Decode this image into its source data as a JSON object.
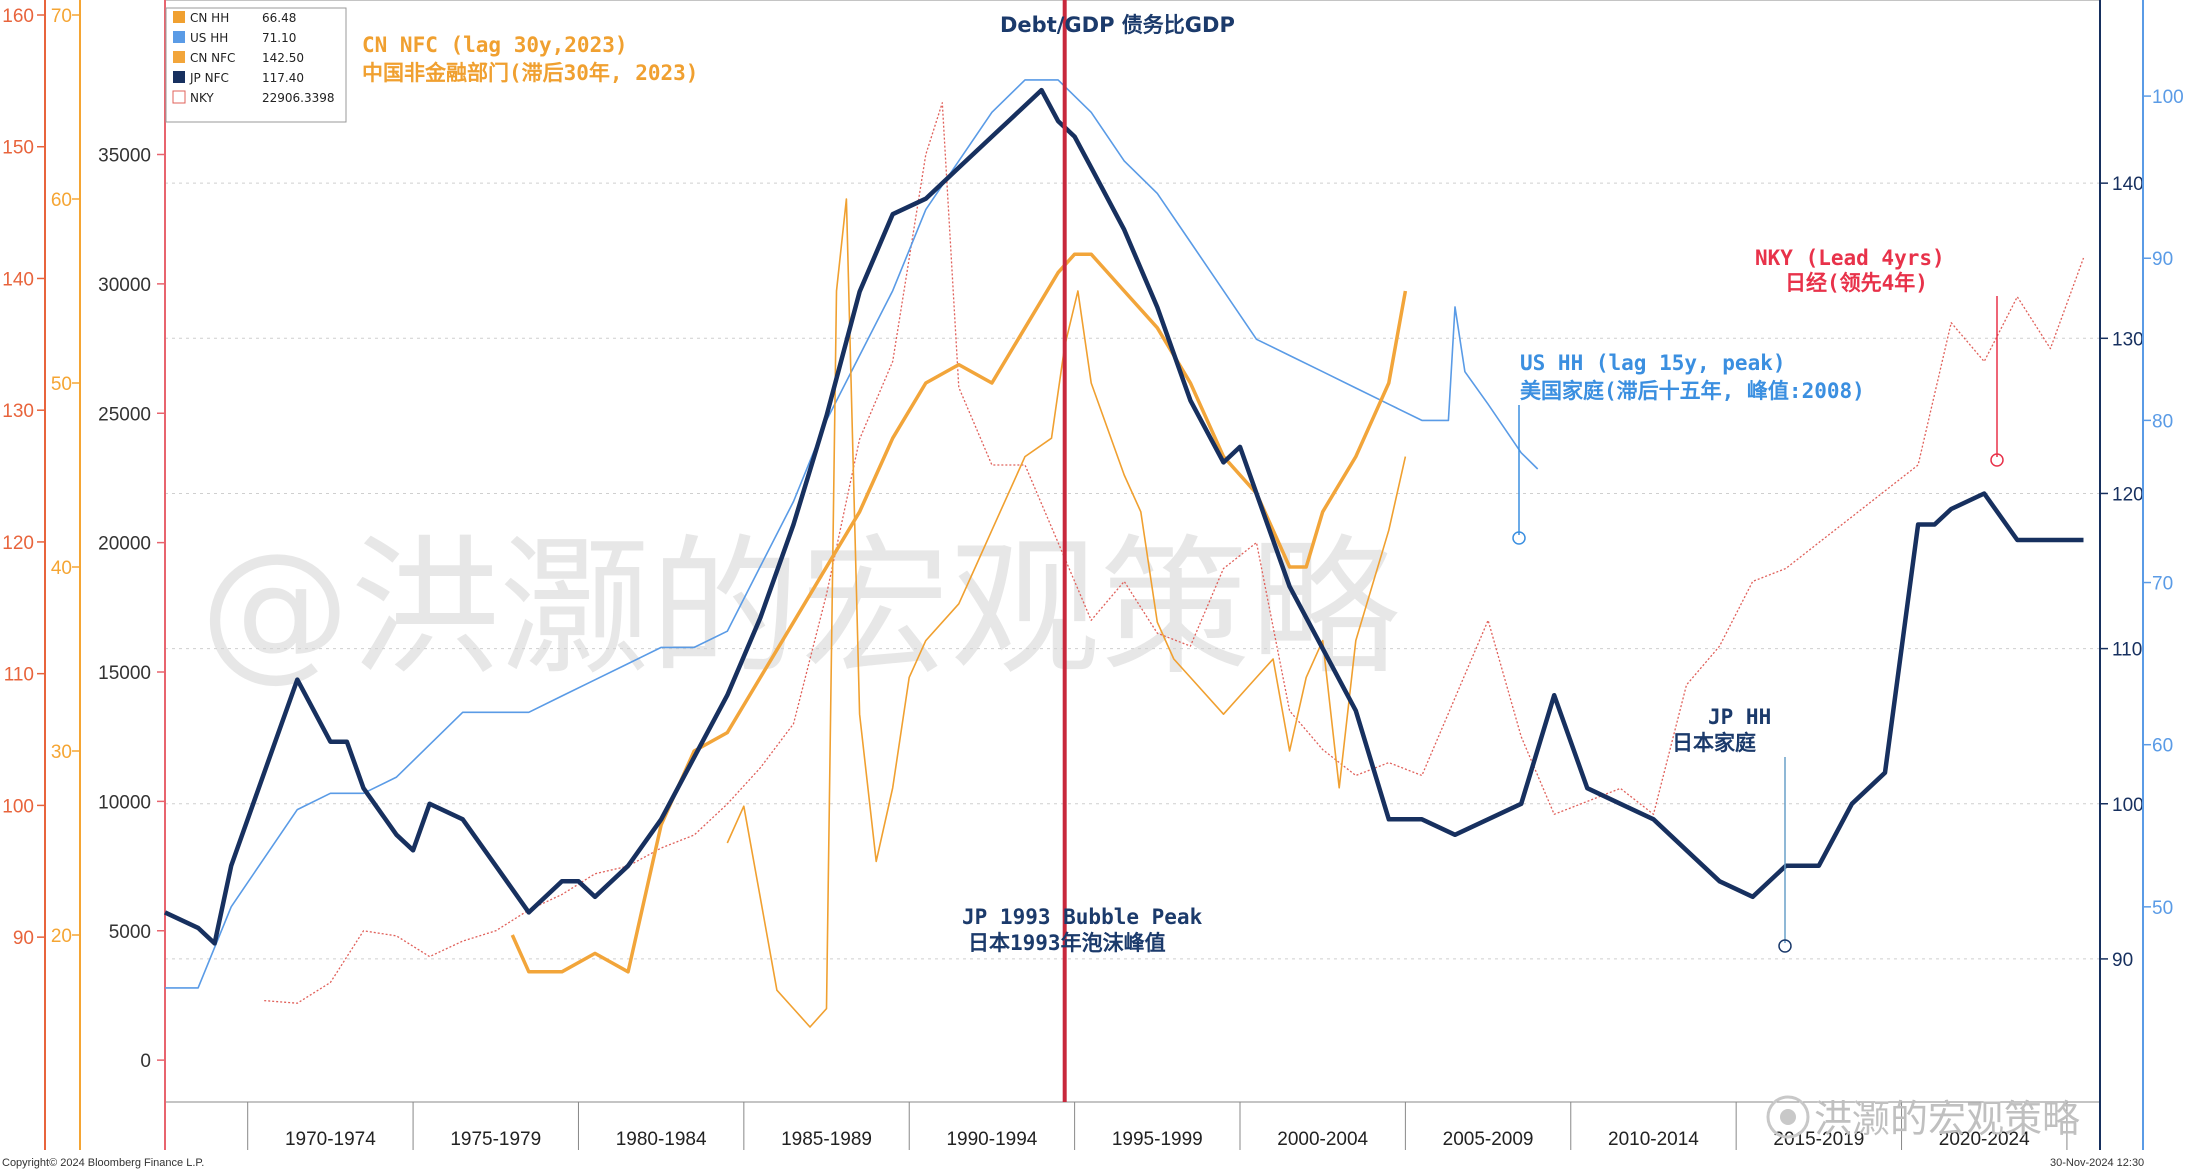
{
  "chart_data": {
    "type": "line",
    "title": "Debt/GDP 债务比GDP",
    "colors": {
      "cn_hh": "#f0a030",
      "us_hh": "#5a9be6",
      "cn_nfc": "#f2a53a",
      "jp_nfc": "#17305f",
      "nky": "#e0605a",
      "peak_line": "#c8283c",
      "us_ann": "#3b8fe0",
      "nky_ann": "#e8324a",
      "cn_ann": "#f0a030",
      "jp_ann": "#1b3a6b"
    },
    "legend": [
      {
        "name": "CN HH",
        "value": "66.48"
      },
      {
        "name": "US HH",
        "value": "71.10"
      },
      {
        "name": "CN NFC",
        "value": "142.50"
      },
      {
        "name": "JP NFC",
        "value": "117.40"
      },
      {
        "name": "NKY",
        "value": "22906.3398"
      }
    ],
    "x_range": [
      1967.0,
      2025.5
    ],
    "x_labels": [
      "1970-1974",
      "1975-1979",
      "1980-1984",
      "1985-1989",
      "1990-1994",
      "1995-1999",
      "2000-2004",
      "2005-2009",
      "2010-2014",
      "2015-2019",
      "2020-2024"
    ],
    "axes": {
      "left1": {
        "ticks": [
          "160",
          "150",
          "140",
          "130",
          "120",
          "110",
          "100",
          "90"
        ],
        "range": [
          85,
          160
        ],
        "color": "#e8643c"
      },
      "left2": {
        "ticks": [
          "70",
          "60",
          "50",
          "40",
          "30",
          "20"
        ],
        "range": [
          15,
          70
        ],
        "color": "#f5a533"
      },
      "left3": {
        "ticks": [
          "35000",
          "30000",
          "25000",
          "20000",
          "15000",
          "10000",
          "5000",
          "0"
        ],
        "range": [
          -1000,
          39000
        ],
        "color": "#e8646e"
      },
      "right1": {
        "ticks": [
          "140",
          "130",
          "120",
          "110",
          "100",
          "90"
        ],
        "range": [
          84,
          150
        ],
        "color": "#17305f"
      },
      "right2": {
        "ticks": [
          "100",
          "90",
          "80",
          "70",
          "60",
          "50"
        ],
        "range": [
          40,
          105
        ],
        "color": "#5a9be6"
      }
    },
    "series": [
      {
        "name": "JP NFC",
        "axis": "right1",
        "color": "jp_nfc",
        "x": [
          1967.0,
          1968.0,
          1968.5,
          1969.0,
          1970.0,
          1971.0,
          1972.0,
          1972.5,
          1973.0,
          1974.0,
          1974.5,
          1975.0,
          1976.0,
          1977.0,
          1978.0,
          1979.0,
          1979.5,
          1980.0,
          1981.0,
          1982.0,
          1983.0,
          1984.0,
          1985.0,
          1986.0,
          1987.0,
          1988.0,
          1989.0,
          1990.0,
          1991.0,
          1992.0,
          1992.5,
          1993.0,
          1993.5,
          1994.0,
          1994.5,
          1995.0,
          1996.0,
          1997.0,
          1998.0,
          1999.0,
          1999.5,
          2000.0,
          2001.0,
          2002.0,
          2003.0,
          2004.0,
          2005.0,
          2006.0,
          2007.0,
          2008.0,
          2009.0,
          2010.0,
          2011.0,
          2012.0,
          2013.0,
          2014.0,
          2015.0,
          2016.0,
          2017.0,
          2018.0,
          2019.0,
          2020.0,
          2020.5,
          2021.0,
          2022.0,
          2023.0,
          2024.0,
          2025.0
        ],
        "y": [
          93,
          92,
          91,
          96,
          102,
          108,
          104,
          104,
          101,
          98,
          97,
          100,
          99,
          96,
          93,
          95,
          95,
          94,
          96,
          99,
          103,
          107,
          112,
          118,
          125,
          133,
          138,
          139,
          141,
          143,
          144,
          145,
          146,
          144,
          143,
          141,
          137,
          132,
          126,
          122,
          123,
          120,
          114,
          110,
          106,
          99,
          99,
          98,
          99,
          100,
          107,
          101,
          100,
          99,
          97,
          95,
          94,
          96,
          96,
          100,
          102,
          118,
          118,
          119,
          120,
          117,
          117,
          117
        ]
      },
      {
        "name": "US HH",
        "axis": "right2",
        "color": "us_hh",
        "x": [
          1967.0,
          1968.0,
          1969.0,
          1970.0,
          1971.0,
          1972.0,
          1973.0,
          1974.0,
          1975.0,
          1976.0,
          1977.0,
          1978.0,
          1979.0,
          1980.0,
          1981.0,
          1982.0,
          1983.0,
          1984.0,
          1985.0,
          1986.0,
          1987.0,
          1988.0,
          1989.0,
          1990.0,
          1991.0,
          1992.0,
          1993.0,
          1994.0,
          1995.0,
          1996.0,
          1997.0,
          1998.0,
          1999.0,
          2000.0,
          2001.0,
          2002.0,
          2003.0,
          2004.0,
          2005.0,
          2005.8,
          2006.0,
          2006.3,
          2007.0,
          2008.0,
          2008.5
        ],
        "y": [
          45,
          45,
          50,
          53,
          56,
          57,
          57,
          58,
          60,
          62,
          62,
          62,
          63,
          64,
          65,
          66,
          66,
          67,
          71,
          75,
          80,
          84,
          88,
          93,
          96,
          99,
          101,
          101,
          99,
          96,
          94,
          91,
          88,
          85,
          84,
          83,
          82,
          81,
          80,
          80,
          87,
          83,
          81,
          78,
          77
        ]
      },
      {
        "name": "CN NFC",
        "axis": "left2",
        "color": "cn_nfc",
        "x": [
          1977.5,
          1978.0,
          1979.0,
          1980.0,
          1981.0,
          1982.0,
          1983.0,
          1984.0,
          1985.0,
          1986.0,
          1987.0,
          1988.0,
          1989.0,
          1990.0,
          1991.0,
          1992.0,
          1993.0,
          1994.0,
          1994.5,
          1995.0,
          1996.0,
          1997.0,
          1998.0,
          1999.0,
          2000.0,
          2001.0,
          2001.5,
          2002.0,
          2003.0,
          2003.5,
          2004.0,
          2004.5
        ],
        "y": [
          20,
          18,
          18,
          19,
          18,
          26,
          30,
          31,
          34,
          37,
          40,
          43,
          47,
          50,
          51,
          50,
          53,
          56,
          57,
          57,
          55,
          53,
          50,
          46,
          44,
          40,
          40,
          43,
          46,
          48,
          50,
          55
        ]
      },
      {
        "name": "CN HH",
        "axis": "left2",
        "color": "cn_hh",
        "x": [
          1984.0,
          1984.5,
          1985.0,
          1985.5,
          1986.0,
          1986.5,
          1987.0,
          1987.3,
          1987.6,
          1988.0,
          1988.5,
          1989.0,
          1989.5,
          1990.0,
          1991.0,
          1991.5,
          1992.0,
          1993.0,
          1993.8,
          1994.2,
          1994.6,
          1995.0,
          1996.0,
          1996.5,
          1997.0,
          1997.5,
          1998.0,
          1999.0,
          2000.0,
          2000.5,
          2001.0,
          2001.5,
          2002.0,
          2002.5,
          2003.0,
          2004.0,
          2004.5
        ],
        "y": [
          25,
          27,
          22,
          17,
          16,
          15,
          16,
          55,
          60,
          32,
          24,
          28,
          34,
          36,
          38,
          40,
          42,
          46,
          47,
          52,
          55,
          50,
          45,
          43,
          37,
          35,
          34,
          32,
          34,
          35,
          30,
          34,
          36,
          28,
          36,
          42,
          46
        ]
      },
      {
        "name": "NKY",
        "axis": "left3",
        "color": "nky",
        "dotted": true,
        "x": [
          1970.0,
          1971.0,
          1972.0,
          1973.0,
          1974.0,
          1975.0,
          1976.0,
          1977.0,
          1978.0,
          1979.0,
          1980.0,
          1981.0,
          1982.0,
          1983.0,
          1984.0,
          1985.0,
          1986.0,
          1987.0,
          1988.0,
          1989.0,
          1990.0,
          1990.5,
          1991.0,
          1992.0,
          1993.0,
          1994.0,
          1995.0,
          1996.0,
          1997.0,
          1998.0,
          1999.0,
          2000.0,
          2001.0,
          2002.0,
          2003.0,
          2004.0,
          2005.0,
          2006.0,
          2007.0,
          2008.0,
          2009.0,
          2010.0,
          2011.0,
          2012.0,
          2013.0,
          2014.0,
          2015.0,
          2016.0,
          2017.0,
          2018.0,
          2019.0,
          2020.0,
          2021.0,
          2022.0,
          2023.0,
          2024.0,
          2025.0
        ],
        "y": [
          2300,
          2200,
          3000,
          5000,
          4800,
          4000,
          4600,
          5000,
          5800,
          6400,
          7200,
          7500,
          8200,
          8700,
          9900,
          11300,
          13000,
          18000,
          24000,
          27000,
          35000,
          37000,
          26000,
          23000,
          23000,
          20000,
          17000,
          18500,
          16500,
          16000,
          19000,
          20000,
          13500,
          12000,
          11000,
          11500,
          11000,
          14000,
          17000,
          12500,
          9500,
          10000,
          10500,
          9500,
          14500,
          16000,
          18500,
          19000,
          20000,
          21000,
          22000,
          23000,
          28500,
          27000,
          29500,
          27500,
          31000
        ]
      }
    ],
    "annotations": {
      "title": "Debt/GDP 债务比GDP",
      "cn_nfc_en": "CN NFC (lag 30y,2023)",
      "cn_nfc_zh": "中国非金融部门(滞后30年, 2023)",
      "us_hh_en": "US HH (lag 15y, peak)",
      "us_hh_zh": "美国家庭(滞后十五年, 峰值:2008)",
      "nky_en": "NKY (Lead 4yrs)",
      "nky_zh": "日经(领先4年)",
      "jp_hh_en": "JP HH",
      "jp_hh_zh": "日本家庭",
      "jp_peak_en": "JP 1993 Bubble Peak",
      "jp_peak_zh": "日本1993年泡沫峰值"
    },
    "peak_year": 1994.2,
    "watermark": "@洪灏的宏观策略",
    "weibo": "洪灏的宏观策略",
    "copyright": "Copyright© 2024 Bloomberg Finance L.P.",
    "date": "30-Nov-2024 12:30"
  }
}
